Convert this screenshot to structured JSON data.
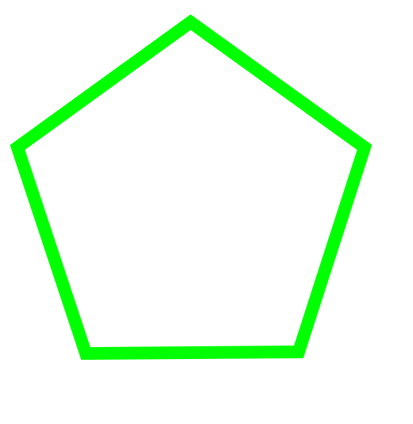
{
  "shape": {
    "type": "regular-pentagon",
    "fill": "none",
    "stroke_color": "#00ff00"
  },
  "background_color": "#ffffff"
}
